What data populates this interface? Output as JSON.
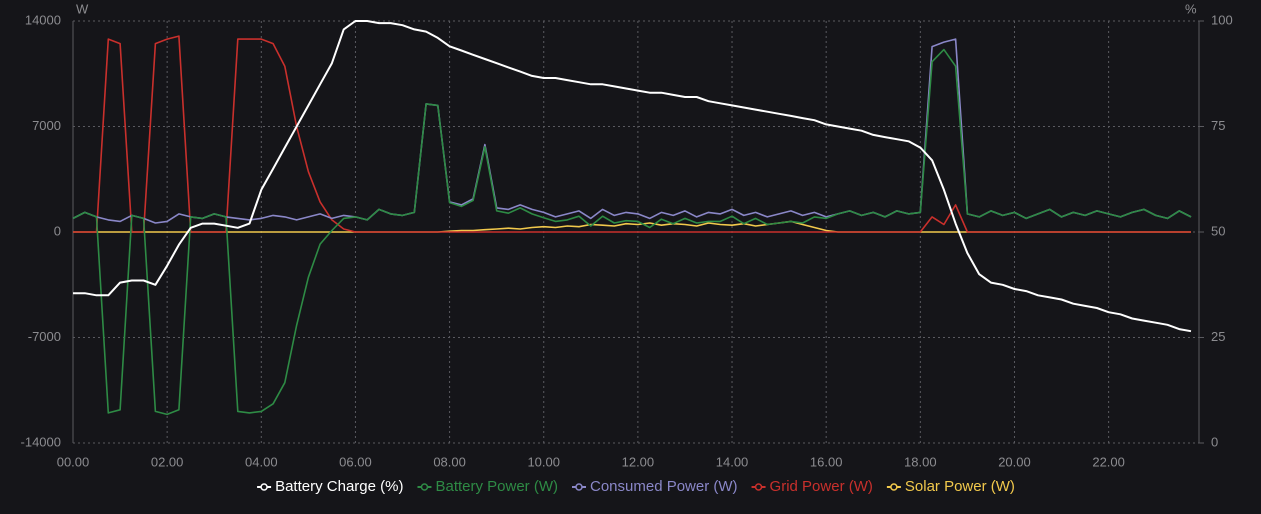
{
  "chart_data": {
    "type": "line",
    "y_label": "W",
    "y2_label": "%",
    "x": [
      0,
      0.25,
      0.5,
      0.75,
      1,
      1.25,
      1.5,
      1.75,
      2,
      2.25,
      2.5,
      2.75,
      3,
      3.25,
      3.5,
      3.75,
      4,
      4.25,
      4.5,
      4.75,
      5,
      5.25,
      5.5,
      5.75,
      6,
      6.25,
      6.5,
      6.75,
      7,
      7.25,
      7.5,
      7.75,
      8,
      8.25,
      8.5,
      8.75,
      9,
      9.25,
      9.5,
      9.75,
      10,
      10.25,
      10.5,
      10.75,
      11,
      11.25,
      11.5,
      11.75,
      12,
      12.25,
      12.5,
      12.75,
      13,
      13.25,
      13.5,
      13.75,
      14,
      14.25,
      14.5,
      14.75,
      15,
      15.25,
      15.5,
      15.75,
      16,
      16.25,
      16.5,
      16.75,
      17,
      17.25,
      17.5,
      17.75,
      18,
      18.25,
      18.5,
      18.75,
      19,
      19.25,
      19.5,
      19.75,
      20,
      20.25,
      20.5,
      20.75,
      21,
      21.25,
      21.5,
      21.75,
      22,
      22.25,
      22.5,
      22.75,
      23,
      23.25,
      23.5,
      23.75
    ],
    "xlim": [
      0,
      23.92
    ],
    "xticks": [
      {
        "value": 0,
        "label": "00.00"
      },
      {
        "value": 2,
        "label": "02.00"
      },
      {
        "value": 4,
        "label": "04.00"
      },
      {
        "value": 6,
        "label": "06.00"
      },
      {
        "value": 8,
        "label": "08.00"
      },
      {
        "value": 10,
        "label": "10.00"
      },
      {
        "value": 12,
        "label": "12.00"
      },
      {
        "value": 14,
        "label": "14.00"
      },
      {
        "value": 16,
        "label": "16.00"
      },
      {
        "value": 18,
        "label": "18.00"
      },
      {
        "value": 20,
        "label": "20.00"
      },
      {
        "value": 22,
        "label": "22.00"
      }
    ],
    "ylim": [
      -14000,
      14000
    ],
    "yticks": [
      -14000,
      -7000,
      0,
      7000,
      14000
    ],
    "y2lim": [
      0,
      100
    ],
    "y2ticks": [
      0,
      25,
      50,
      75,
      100
    ],
    "grid": true,
    "series": [
      {
        "name": "Battery Charge (%)",
        "color": "#ffffff",
        "axis": "y2",
        "values": [
          35.5,
          35.5,
          35,
          35,
          38,
          38.5,
          38.5,
          37.5,
          42,
          47,
          51,
          52,
          52,
          51.5,
          51,
          52,
          60,
          65,
          70,
          75,
          80,
          85,
          90,
          98,
          100,
          100,
          99.5,
          99.5,
          99,
          98,
          97.5,
          96,
          94,
          93,
          92,
          91,
          90,
          89,
          88,
          87,
          86.5,
          86.5,
          86,
          85.5,
          85,
          85,
          84.5,
          84,
          83.5,
          83,
          83,
          82.5,
          82,
          82,
          81,
          80.5,
          80,
          79.5,
          79,
          78.5,
          78,
          77.5,
          77,
          76.5,
          75.5,
          75,
          74.5,
          74,
          73,
          72.5,
          72,
          71.5,
          70,
          67,
          60,
          52,
          45,
          40,
          38,
          37.5,
          36.5,
          36,
          35,
          34.5,
          34,
          33,
          32.5,
          32,
          31,
          30.5,
          29.5,
          29,
          28.5,
          28,
          27,
          26.5
        ]
      },
      {
        "name": "Battery Power (W)",
        "color": "#2e8b45",
        "values": [
          900,
          1300,
          1000,
          -12000,
          -11800,
          1100,
          900,
          -11900,
          -12100,
          -11800,
          1000,
          900,
          1200,
          1000,
          -11900,
          -12000,
          -11900,
          -11400,
          -10000,
          -6200,
          -3000,
          -800,
          100,
          900,
          1000,
          800,
          1500,
          1200,
          1100,
          1300,
          8500,
          8400,
          1950,
          1700,
          2100,
          5650,
          1400,
          1250,
          1600,
          1200,
          950,
          700,
          800,
          1050,
          400,
          1050,
          600,
          750,
          700,
          300,
          850,
          550,
          900,
          600,
          700,
          700,
          1050,
          550,
          900,
          500,
          600,
          700,
          600,
          1000,
          900,
          1200,
          1400,
          1100,
          1300,
          1000,
          1400,
          1200,
          1300,
          11300,
          12100,
          11000,
          1200,
          1000,
          1400,
          1100,
          1300,
          900,
          1200,
          1500,
          1000,
          1300,
          1100,
          1400,
          1200,
          1000,
          1300,
          1500,
          1100,
          900,
          1400,
          1000
        ]
      },
      {
        "name": "Consumed Power (W)",
        "color": "#8a87c8",
        "values": [
          900,
          1300,
          1000,
          800,
          700,
          1100,
          900,
          600,
          700,
          1200,
          1000,
          900,
          1200,
          1000,
          900,
          800,
          900,
          1100,
          1000,
          800,
          1000,
          1200,
          900,
          1100,
          1000,
          800,
          1500,
          1200,
          1100,
          1300,
          8500,
          8400,
          2000,
          1800,
          2200,
          5800,
          1600,
          1500,
          1800,
          1500,
          1300,
          1000,
          1200,
          1400,
          900,
          1500,
          1100,
          1300,
          1200,
          900,
          1300,
          1100,
          1400,
          1000,
          1300,
          1200,
          1500,
          1100,
          1300,
          1000,
          1200,
          1400,
          1100,
          1300,
          1000,
          1200,
          1400,
          1100,
          1300,
          1000,
          1400,
          1200,
          1300,
          12300,
          12600,
          12800,
          1200,
          1000,
          1400,
          1100,
          1300,
          900,
          1200,
          1500,
          1000,
          1300,
          1100,
          1400,
          1200,
          1000,
          1300,
          1500,
          1100,
          900,
          1400,
          1000
        ]
      },
      {
        "name": "Grid Power (W)",
        "color": "#c9302c",
        "values": [
          0,
          0,
          0,
          12800,
          12500,
          0,
          0,
          12500,
          12800,
          13000,
          0,
          0,
          0,
          0,
          12800,
          12800,
          12800,
          12500,
          11000,
          7000,
          4000,
          2000,
          800,
          200,
          0,
          0,
          0,
          0,
          0,
          0,
          0,
          0,
          0,
          0,
          0,
          0,
          0,
          0,
          0,
          0,
          0,
          0,
          0,
          0,
          0,
          0,
          0,
          0,
          0,
          0,
          0,
          0,
          0,
          0,
          0,
          0,
          0,
          0,
          0,
          0,
          0,
          0,
          0,
          0,
          0,
          0,
          0,
          0,
          0,
          0,
          0,
          0,
          0,
          1000,
          500,
          1800,
          0,
          0,
          0,
          0,
          0,
          0,
          0,
          0,
          0,
          0,
          0,
          0,
          0,
          0,
          0,
          0,
          0,
          0,
          0,
          0
        ]
      },
      {
        "name": "Solar Power (W)",
        "color": "#f2c94c",
        "values": [
          0,
          0,
          0,
          0,
          0,
          0,
          0,
          0,
          0,
          0,
          0,
          0,
          0,
          0,
          0,
          0,
          0,
          0,
          0,
          0,
          0,
          0,
          0,
          0,
          0,
          0,
          0,
          0,
          0,
          0,
          0,
          0,
          50,
          100,
          100,
          150,
          200,
          250,
          200,
          300,
          350,
          300,
          400,
          350,
          500,
          450,
          400,
          550,
          500,
          600,
          450,
          550,
          500,
          400,
          600,
          500,
          450,
          550,
          400,
          500,
          600,
          700,
          500,
          300,
          100,
          0,
          0,
          0,
          0,
          0,
          0,
          0,
          0,
          0,
          0,
          0,
          0,
          0,
          0,
          0,
          0,
          0,
          0,
          0,
          0,
          0,
          0,
          0,
          0,
          0,
          0,
          0,
          0,
          0,
          0,
          0
        ]
      }
    ]
  }
}
